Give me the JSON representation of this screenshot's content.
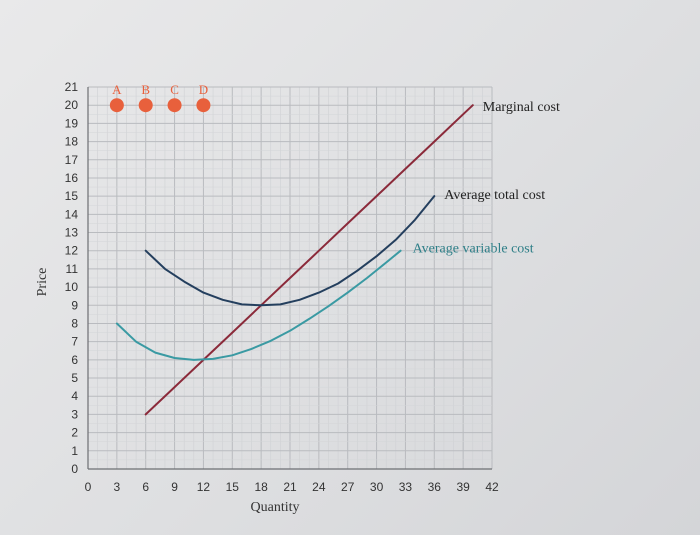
{
  "chart_data": {
    "type": "line",
    "xlabel": "Quantity",
    "ylabel": "Price",
    "xlim": [
      0,
      42
    ],
    "ylim": [
      0,
      21
    ],
    "x_ticks": [
      0,
      3,
      6,
      9,
      12,
      15,
      18,
      21,
      24,
      27,
      30,
      33,
      36,
      39,
      42
    ],
    "y_ticks": [
      0,
      1,
      2,
      3,
      4,
      5,
      6,
      7,
      8,
      9,
      10,
      11,
      12,
      13,
      14,
      15,
      16,
      17,
      18,
      19,
      20,
      21
    ],
    "grid": true,
    "series": [
      {
        "name": "Marginal cost",
        "color": "#8b2a3a",
        "points": [
          [
            6,
            3
          ],
          [
            9,
            4.5
          ],
          [
            12,
            6
          ],
          [
            15,
            7.5
          ],
          [
            18,
            9
          ],
          [
            21,
            10.5
          ],
          [
            24,
            12
          ],
          [
            27,
            13.5
          ],
          [
            30,
            15
          ],
          [
            33,
            16.5
          ],
          [
            36,
            18
          ],
          [
            39,
            19.5
          ],
          [
            40,
            20
          ]
        ]
      },
      {
        "name": "Average total cost",
        "color": "#243f5e",
        "points": [
          [
            6,
            12
          ],
          [
            8,
            11
          ],
          [
            10,
            10.3
          ],
          [
            12,
            9.7
          ],
          [
            14,
            9.3
          ],
          [
            16,
            9.05
          ],
          [
            18,
            9
          ],
          [
            20,
            9.05
          ],
          [
            22,
            9.3
          ],
          [
            24,
            9.7
          ],
          [
            26,
            10.2
          ],
          [
            28,
            10.9
          ],
          [
            30,
            11.7
          ],
          [
            32,
            12.6
          ],
          [
            34,
            13.7
          ],
          [
            36,
            15
          ]
        ]
      },
      {
        "name": "Average variable cost",
        "color": "#3a9aa3",
        "points": [
          [
            3,
            8
          ],
          [
            5,
            7
          ],
          [
            7,
            6.4
          ],
          [
            9,
            6.1
          ],
          [
            11,
            6
          ],
          [
            13,
            6.05
          ],
          [
            15,
            6.25
          ],
          [
            17,
            6.6
          ],
          [
            19,
            7.05
          ],
          [
            21,
            7.6
          ],
          [
            23,
            8.25
          ],
          [
            25,
            8.95
          ],
          [
            27,
            9.7
          ],
          [
            29,
            10.5
          ],
          [
            31,
            11.35
          ],
          [
            32.5,
            12
          ]
        ]
      }
    ],
    "markers": [
      {
        "label": "A",
        "x": 3,
        "y": 20
      },
      {
        "label": "B",
        "x": 6,
        "y": 20
      },
      {
        "label": "C",
        "x": 9,
        "y": 20
      },
      {
        "label": "D",
        "x": 12,
        "y": 20
      }
    ],
    "marker_color": "#e8603c"
  }
}
